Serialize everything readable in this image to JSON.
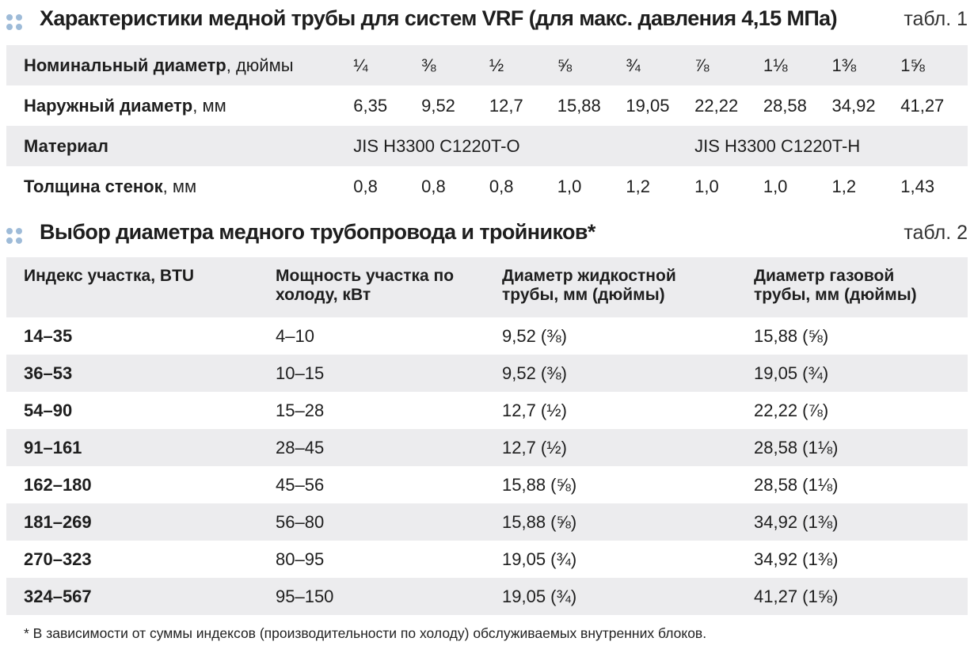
{
  "table1": {
    "title": "Характеристики медной трубы для систем VRF (для макс. давления 4,15 МПа)",
    "number": "табл. 1",
    "rows": {
      "nominal": {
        "label": "Номинальный диаметр",
        "unit": ", дюймы",
        "values": [
          "¼",
          "⅜",
          "½",
          "⅝",
          "¾",
          "⅞",
          "1⅛",
          "1⅜",
          "1⅝"
        ]
      },
      "outer": {
        "label": "Наружный диаметр",
        "unit": ", мм",
        "values": [
          "6,35",
          "9,52",
          "12,7",
          "15,88",
          "19,05",
          "22,22",
          "28,58",
          "34,92",
          "41,27"
        ]
      },
      "material": {
        "label": "Материал",
        "value_a": "JIS H3300 C1220T-O",
        "value_b": "JIS H3300 C1220T-H"
      },
      "wall": {
        "label": "Толщина стенок",
        "unit": ", мм",
        "values": [
          "0,8",
          "0,8",
          "0,8",
          "1,0",
          "1,2",
          "1,0",
          "1,0",
          "1,2",
          "1,43"
        ]
      }
    }
  },
  "table2": {
    "title": "Выбор диаметра медного трубопровода и тройников*",
    "number": "табл. 2",
    "headers": [
      "Индекс участка, BTU",
      "Мощность участка по холоду, кВт",
      "Диаметр жидкостной трубы, мм (дюймы)",
      "Диаметр газовой трубы, мм (дюймы)"
    ],
    "rows": [
      [
        "14–35",
        "4–10",
        "9,52 (⅜)",
        "15,88 (⅝)"
      ],
      [
        "36–53",
        "10–15",
        "9,52 (⅜)",
        "19,05 (¾)"
      ],
      [
        "54–90",
        "15–28",
        "12,7 (½)",
        "22,22 (⅞)"
      ],
      [
        "91–161",
        "28–45",
        "12,7 (½)",
        "28,58 (1⅛)"
      ],
      [
        "162–180",
        "45–56",
        "15,88 (⅝)",
        "28,58 (1⅛)"
      ],
      [
        "181–269",
        "56–80",
        "15,88 (⅝)",
        "34,92 (1⅜)"
      ],
      [
        "270–323",
        "80–95",
        "19,05 (¾)",
        "34,92 (1⅜)"
      ],
      [
        "324–567",
        "95–150",
        "19,05 (¾)",
        "41,27 (1⅝)"
      ]
    ]
  },
  "footnote": "* В зависимости от суммы индексов (производительности по холоду) обслуживаемых внутренних блоков.",
  "colors": {
    "accent_dots": "#9ebbd8",
    "row_shade": "#ececee"
  }
}
